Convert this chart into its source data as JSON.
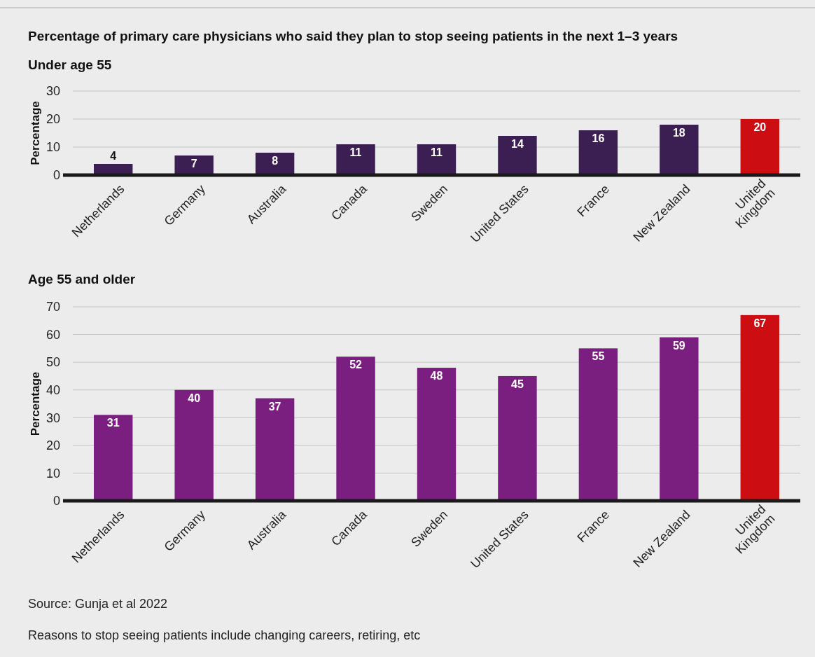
{
  "chart_data": [
    {
      "type": "bar",
      "title": "Percentage of primary care physicians who said they plan to stop seeing patients in the next 1–3 years",
      "subtitle": "Under age 55",
      "ylabel": "Percentage",
      "categories": [
        "Netherlands",
        "Germany",
        "Australia",
        "Canada",
        "Sweden",
        "United States",
        "France",
        "New Zealand",
        "United Kingdom"
      ],
      "values": [
        4,
        7,
        8,
        11,
        11,
        14,
        16,
        18,
        20
      ],
      "colors": [
        "#3b1f52",
        "#3b1f52",
        "#3b1f52",
        "#3b1f52",
        "#3b1f52",
        "#3b1f52",
        "#3b1f52",
        "#3b1f52",
        "#cc0e12"
      ],
      "ylim": [
        0,
        30
      ],
      "yticks": [
        0,
        10,
        20,
        30
      ],
      "grid": "y",
      "data_labels": true
    },
    {
      "type": "bar",
      "title": "Age 55 and older",
      "ylabel": "Percentage",
      "categories": [
        "Netherlands",
        "Germany",
        "Australia",
        "Canada",
        "Sweden",
        "United States",
        "France",
        "New Zealand",
        "United Kingdom"
      ],
      "values": [
        31,
        40,
        37,
        52,
        48,
        45,
        55,
        59,
        67
      ],
      "colors": [
        "#7a1f80",
        "#7a1f80",
        "#7a1f80",
        "#7a1f80",
        "#7a1f80",
        "#7a1f80",
        "#7a1f80",
        "#7a1f80",
        "#cc0e12"
      ],
      "ylim": [
        0,
        70
      ],
      "yticks": [
        0,
        10,
        20,
        30,
        40,
        50,
        60,
        70
      ],
      "grid": "y",
      "data_labels": true,
      "annotations": [
        "Source: Gunja et al 2022",
        "Reasons to stop seeing patients include changing careers, retiring, etc"
      ]
    }
  ]
}
